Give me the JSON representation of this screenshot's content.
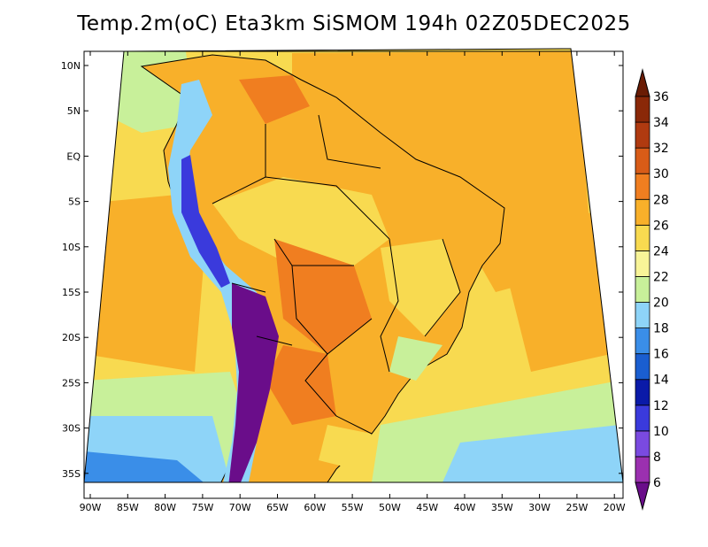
{
  "title": "Temp.2m(oC) Eta3km SiSMOM 194h 02Z05DEC2025",
  "map": {
    "lat_labels": [
      "10N",
      "5N",
      "EQ",
      "5S",
      "10S",
      "15S",
      "20S",
      "25S",
      "30S",
      "35S"
    ],
    "lon_labels": [
      "90W",
      "85W",
      "80W",
      "75W",
      "70W",
      "65W",
      "60W",
      "55W",
      "50W",
      "45W",
      "40W",
      "35W",
      "30W",
      "25W",
      "20W"
    ]
  },
  "colorbar": {
    "unit": "oC",
    "levels": [
      6,
      8,
      10,
      12,
      14,
      16,
      18,
      20,
      22,
      24,
      26,
      28,
      30,
      32,
      34,
      36
    ],
    "labels": [
      "6",
      "8",
      "10",
      "12",
      "14",
      "16",
      "18",
      "20",
      "22",
      "24",
      "26",
      "28",
      "30",
      "32",
      "34",
      "36"
    ],
    "colors": [
      "#6a0d8a",
      "#9b30b0",
      "#7a4ae0",
      "#3a3adc",
      "#0a1aa8",
      "#1a5ed0",
      "#3a8ee8",
      "#8ed4f8",
      "#c8f09a",
      "#f8f498",
      "#f8da50",
      "#f8b02a",
      "#f07e20",
      "#d85c18",
      "#b03a10",
      "#8a2808",
      "#6a1c04"
    ]
  }
}
